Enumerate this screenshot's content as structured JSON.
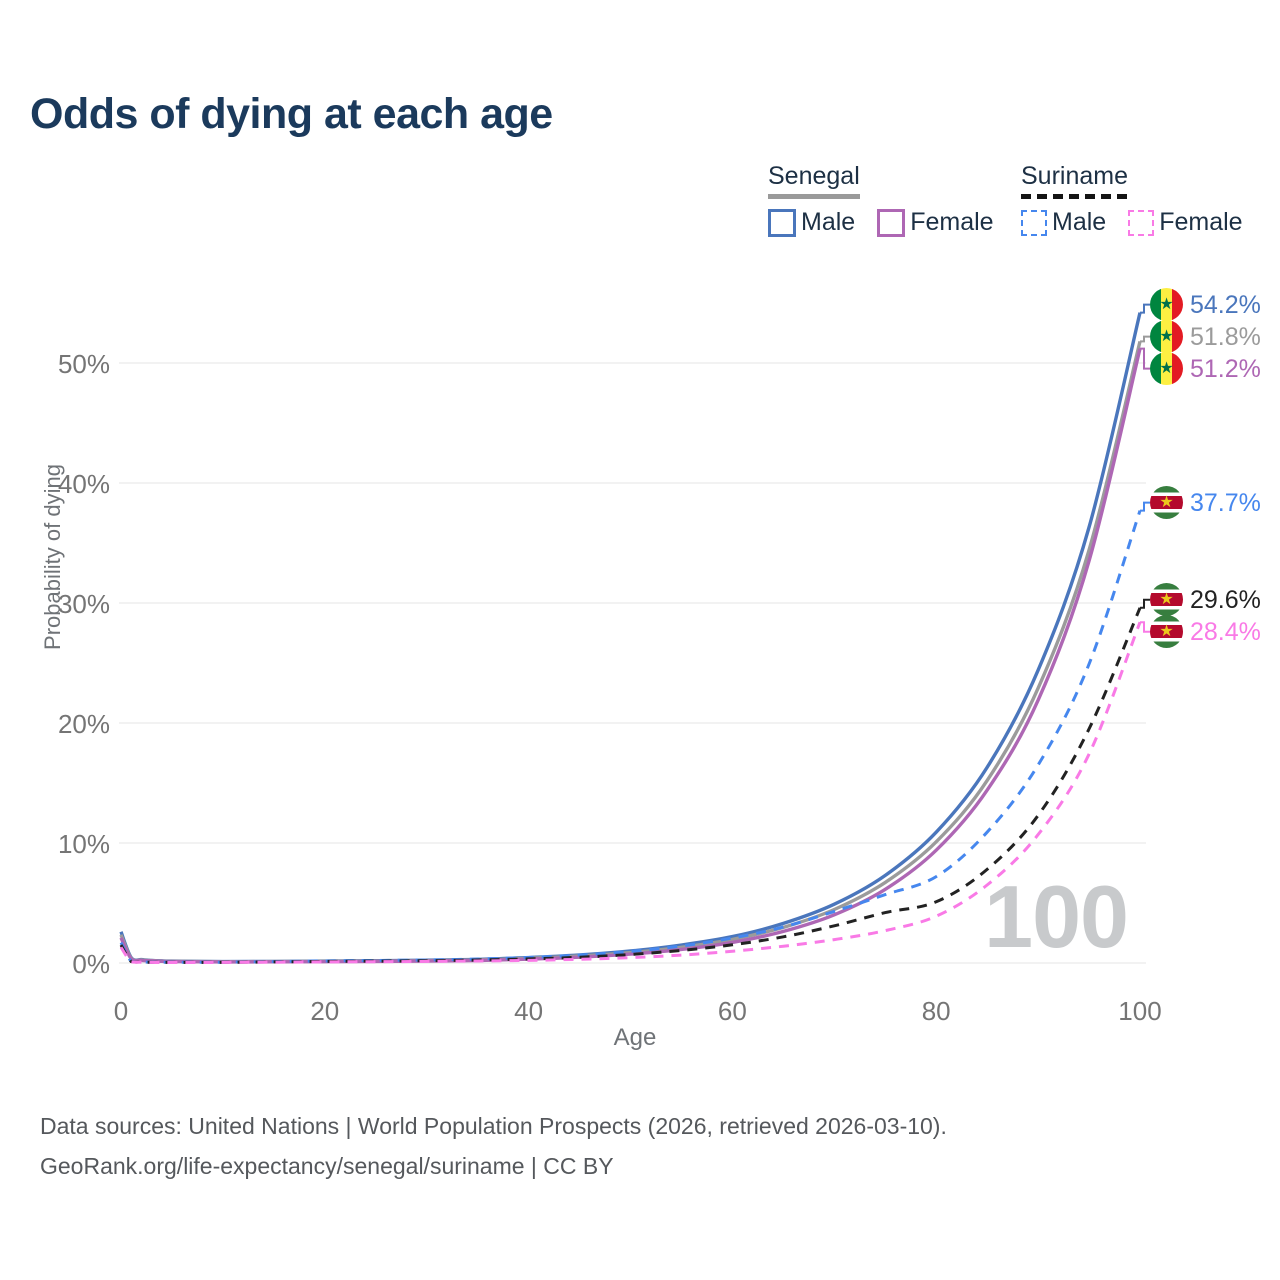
{
  "title": "Odds of dying at each age",
  "watermark": "100",
  "legend": {
    "groups": [
      {
        "name": "Senegal",
        "line_style": "solid",
        "underline_color": "#9a9a9a",
        "items": [
          {
            "label": "Male",
            "series": 0
          },
          {
            "label": "Female",
            "series": 2
          }
        ]
      },
      {
        "name": "Suriname",
        "line_style": "dashed",
        "underline_color": "#141414",
        "items": [
          {
            "label": "Male",
            "series": 3
          },
          {
            "label": "Female",
            "series": 5
          }
        ]
      }
    ]
  },
  "chart_data": {
    "type": "line",
    "title": "Odds of dying at each age",
    "xlabel": "Age",
    "ylabel": "Probability of dying",
    "xlim": [
      0,
      100
    ],
    "ylim_pct": [
      0,
      57
    ],
    "grid": true,
    "legend_position": "top-right",
    "x_ticks": [
      {
        "value": 0,
        "label": "0"
      },
      {
        "value": 20,
        "label": "20"
      },
      {
        "value": 40,
        "label": "40"
      },
      {
        "value": 60,
        "label": "60"
      },
      {
        "value": 80,
        "label": "80"
      },
      {
        "value": 100,
        "label": "100"
      }
    ],
    "y_ticks": [
      {
        "value": 0,
        "label": "0%"
      },
      {
        "value": 10,
        "label": "10%"
      },
      {
        "value": 20,
        "label": "20%"
      },
      {
        "value": 30,
        "label": "30%"
      },
      {
        "value": 40,
        "label": "40%"
      },
      {
        "value": 50,
        "label": "50%"
      }
    ],
    "x": [
      0,
      1,
      2,
      3,
      4,
      5,
      10,
      15,
      20,
      25,
      30,
      35,
      40,
      45,
      50,
      55,
      60,
      65,
      70,
      75,
      80,
      85,
      90,
      95,
      100
    ],
    "series": [
      {
        "name": "Senegal Male",
        "country": "Senegal",
        "sex": "Male",
        "color": "#4a76bc",
        "dashed": false,
        "flag": "senegal",
        "end_label": "54.2%",
        "values": [
          2.6,
          0.45,
          0.28,
          0.22,
          0.18,
          0.16,
          0.12,
          0.13,
          0.16,
          0.19,
          0.23,
          0.3,
          0.45,
          0.67,
          1.0,
          1.5,
          2.2,
          3.3,
          4.9,
          7.3,
          10.9,
          16.3,
          24.4,
          36.3,
          54.2
        ]
      },
      {
        "name": "Senegal Both sexes",
        "country": "Senegal",
        "sex": "Both",
        "color": "#9b9b9b",
        "dashed": false,
        "flag": "senegal",
        "end_label": "51.8%",
        "values": [
          2.35,
          0.4,
          0.25,
          0.2,
          0.16,
          0.14,
          0.11,
          0.12,
          0.14,
          0.16,
          0.19,
          0.26,
          0.39,
          0.58,
          0.87,
          1.31,
          1.97,
          2.97,
          4.46,
          6.72,
          10.1,
          15.2,
          22.9,
          34.4,
          51.8
        ]
      },
      {
        "name": "Senegal Female",
        "country": "Senegal",
        "sex": "Female",
        "color": "#ae67b4",
        "dashed": false,
        "flag": "senegal",
        "end_label": "51.2%",
        "values": [
          2.1,
          0.36,
          0.22,
          0.18,
          0.14,
          0.12,
          0.09,
          0.1,
          0.11,
          0.13,
          0.16,
          0.21,
          0.32,
          0.48,
          0.74,
          1.13,
          1.72,
          2.63,
          4.02,
          6.14,
          9.4,
          14.4,
          21.9,
          33.5,
          51.2
        ]
      },
      {
        "name": "Suriname Male",
        "country": "Suriname",
        "sex": "Male",
        "color": "#4687ee",
        "dashed": true,
        "flag": "suriname",
        "end_label": "37.7%",
        "values": [
          1.7,
          0.14,
          0.09,
          0.07,
          0.06,
          0.06,
          0.07,
          0.12,
          0.17,
          0.21,
          0.25,
          0.33,
          0.46,
          0.66,
          0.97,
          1.42,
          2.08,
          3.0,
          4.3,
          5.7,
          7.2,
          10.9,
          16.5,
          24.9,
          37.7
        ]
      },
      {
        "name": "Suriname Both sexes",
        "country": "Suriname",
        "sex": "Both",
        "color": "#222222",
        "dashed": true,
        "flag": "suriname",
        "end_label": "29.6%",
        "values": [
          1.5,
          0.12,
          0.08,
          0.06,
          0.05,
          0.05,
          0.06,
          0.09,
          0.13,
          0.16,
          0.19,
          0.25,
          0.34,
          0.48,
          0.71,
          1.05,
          1.52,
          2.18,
          3.1,
          4.2,
          5.1,
          7.8,
          12.3,
          19.5,
          29.6
        ]
      },
      {
        "name": "Suriname Female",
        "country": "Suriname",
        "sex": "Female",
        "color": "#f97ae6",
        "dashed": true,
        "flag": "suriname",
        "end_label": "28.4%",
        "values": [
          1.3,
          0.1,
          0.07,
          0.05,
          0.04,
          0.04,
          0.05,
          0.07,
          0.09,
          0.11,
          0.13,
          0.17,
          0.22,
          0.31,
          0.45,
          0.66,
          0.98,
          1.4,
          1.95,
          2.7,
          3.9,
          6.5,
          10.7,
          17.4,
          28.4
        ]
      }
    ]
  },
  "footer": {
    "line1": "Data sources: United Nations | World Population Prospects (2026, retrieved 2026-03-10).",
    "line2": "GeoRank.org/life-expectancy/senegal/suriname | CC BY"
  }
}
